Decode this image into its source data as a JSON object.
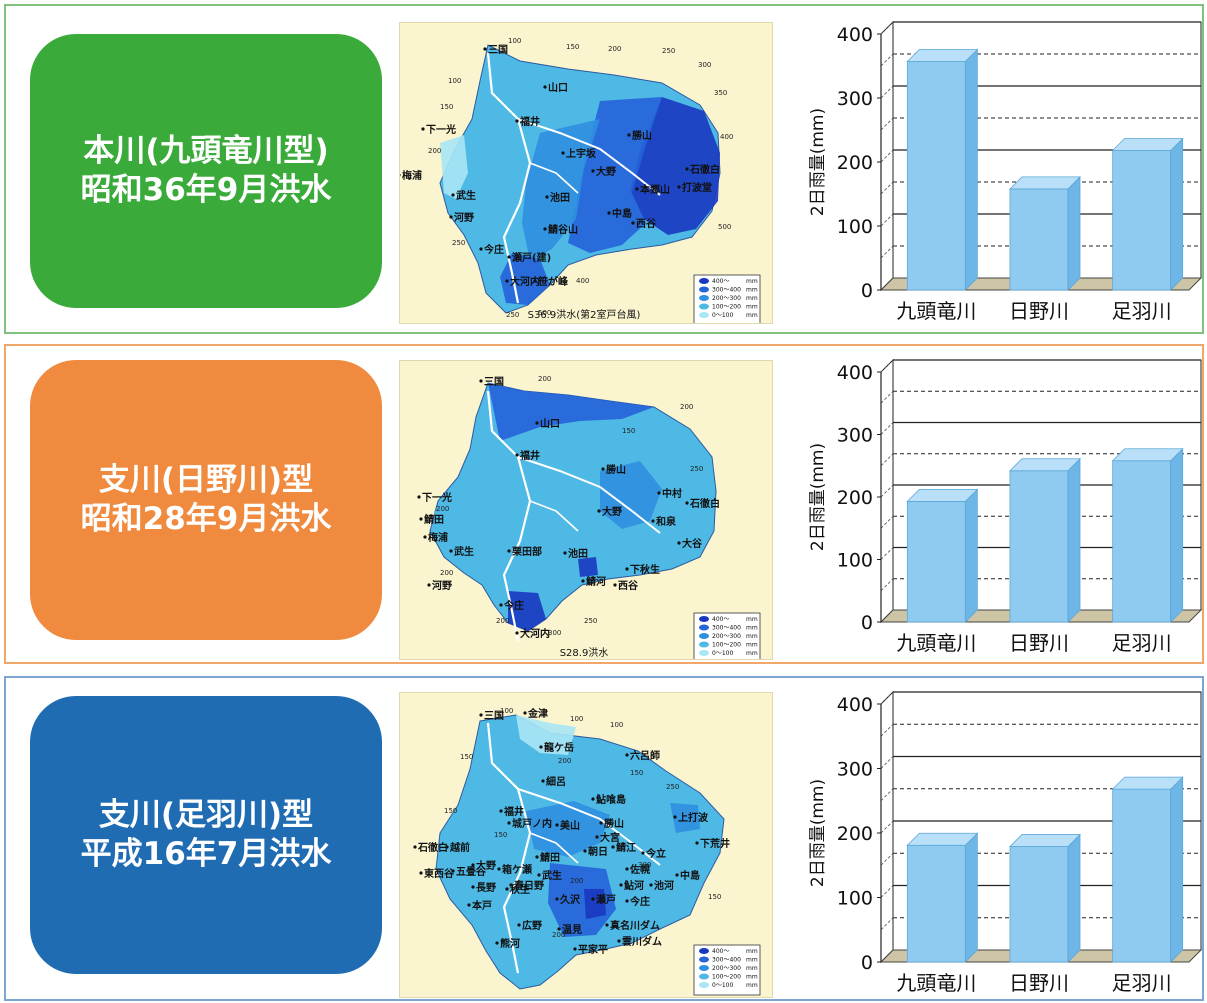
{
  "colors": {
    "panel_borders": [
      "#7ec27e",
      "#f0a86a",
      "#7ea6d4"
    ],
    "label_backgrounds": [
      "#3aaa3a",
      "#f08a3f",
      "#1f6cb3"
    ],
    "bar_fill": "#8fcbf0",
    "floor": "#cdc5a5",
    "map_bg": "#fbf5cf",
    "map_blues": [
      "#a8e6f4",
      "#4fb9e6",
      "#2f8fe0",
      "#2563d8",
      "#1838c0"
    ]
  },
  "panels": [
    {
      "label_lines": [
        "本川(九頭竜川型)",
        "昭和36年9月洪水"
      ],
      "map": {
        "caption": "S36.9洪水(第2室戸台風)",
        "places": [
          "三国",
          "山口",
          "福井",
          "勝山",
          "下一光",
          "上宇坂",
          "大野",
          "梅浦",
          "武生",
          "池田",
          "中島",
          "西谷",
          "河野",
          "鯖谷山",
          "今庄",
          "瀬戸(建)",
          "大河内",
          "笹が峰",
          "石徹白",
          "打波堂",
          "本郷山"
        ],
        "contours": [
          "100",
          "150",
          "200",
          "250",
          "300",
          "350",
          "400",
          "100",
          "150",
          "200",
          "250",
          "500",
          "400",
          "500",
          "250"
        ],
        "legend": [
          "400～",
          "300～400",
          "200～300",
          "100～200",
          "0～100"
        ],
        "legend_unit": "mm"
      },
      "chart_data": {
        "type": "bar",
        "categories": [
          "九頭竜川",
          "日野川",
          "足羽川"
        ],
        "values": [
          357,
          158,
          218
        ],
        "ylabel": "2日雨量(mm)",
        "ylim": [
          0,
          400
        ],
        "yticks": [
          "0",
          "100",
          "200",
          "300",
          "400"
        ],
        "grid": true,
        "style": "3d"
      }
    },
    {
      "label_lines": [
        "支川(日野川)型",
        "昭和28年9月洪水"
      ],
      "map": {
        "caption": "S28.9洪水",
        "places": [
          "三国",
          "山口",
          "福井",
          "勝山",
          "下一光",
          "中村",
          "石徹白",
          "鯖田",
          "梅浦",
          "大野",
          "和泉",
          "武生",
          "栗田部",
          "池田",
          "大谷",
          "河野",
          "鯖河",
          "西谷",
          "下秋生",
          "今庄",
          "大河内"
        ],
        "contours": [
          "200",
          "200",
          "150",
          "200",
          "250",
          "200",
          "250",
          "300",
          "200"
        ],
        "legend": [
          "400～",
          "300～400",
          "200～300",
          "100～200",
          "0～100"
        ],
        "legend_unit": "mm"
      },
      "chart_data": {
        "type": "bar",
        "categories": [
          "九頭竜川",
          "日野川",
          "足羽川"
        ],
        "values": [
          193,
          242,
          258
        ],
        "ylabel": "2日雨量(mm)",
        "ylim": [
          0,
          400
        ],
        "yticks": [
          "0",
          "100",
          "200",
          "300",
          "400"
        ],
        "grid": true,
        "style": "3d"
      }
    },
    {
      "label_lines": [
        "支川(足羽川)型",
        "平成16年7月洪水"
      ],
      "map": {
        "caption": "",
        "places": [
          "三国",
          "金津",
          "龍ケ岳",
          "六呂師",
          "細呂",
          "鮎喰島",
          "福井",
          "勝山",
          "上打波",
          "城戸ノ内",
          "美山",
          "大宮",
          "下荒井",
          "石徹白",
          "越前",
          "鯖江",
          "大野",
          "鯖田",
          "朝日",
          "今立",
          "東西谷",
          "五畳谷",
          "箱ケ瀬",
          "武生",
          "佐幌",
          "中島",
          "長野",
          "春日野",
          "鮎河",
          "池河",
          "本戸",
          "秋生",
          "久沢",
          "瀬戸",
          "今庄",
          "広野",
          "熊河",
          "温見",
          "真名川ダム",
          "雲川ダム",
          "平家平"
        ],
        "contours": [
          "100",
          "100",
          "150",
          "100",
          "150",
          "200",
          "150",
          "150",
          "250",
          "200",
          "200",
          "300",
          "150"
        ],
        "legend": [
          "400～",
          "300～400",
          "200～300",
          "100～200",
          "0～100"
        ],
        "legend_unit": "mm"
      },
      "chart_data": {
        "type": "bar",
        "categories": [
          "九頭竜川",
          "日野川",
          "足羽川"
        ],
        "values": [
          181,
          179,
          268
        ],
        "ylabel": "2日雨量(mm)",
        "ylim": [
          0,
          400
        ],
        "yticks": [
          "0",
          "100",
          "200",
          "300",
          "400"
        ],
        "grid": true,
        "style": "3d"
      }
    }
  ]
}
